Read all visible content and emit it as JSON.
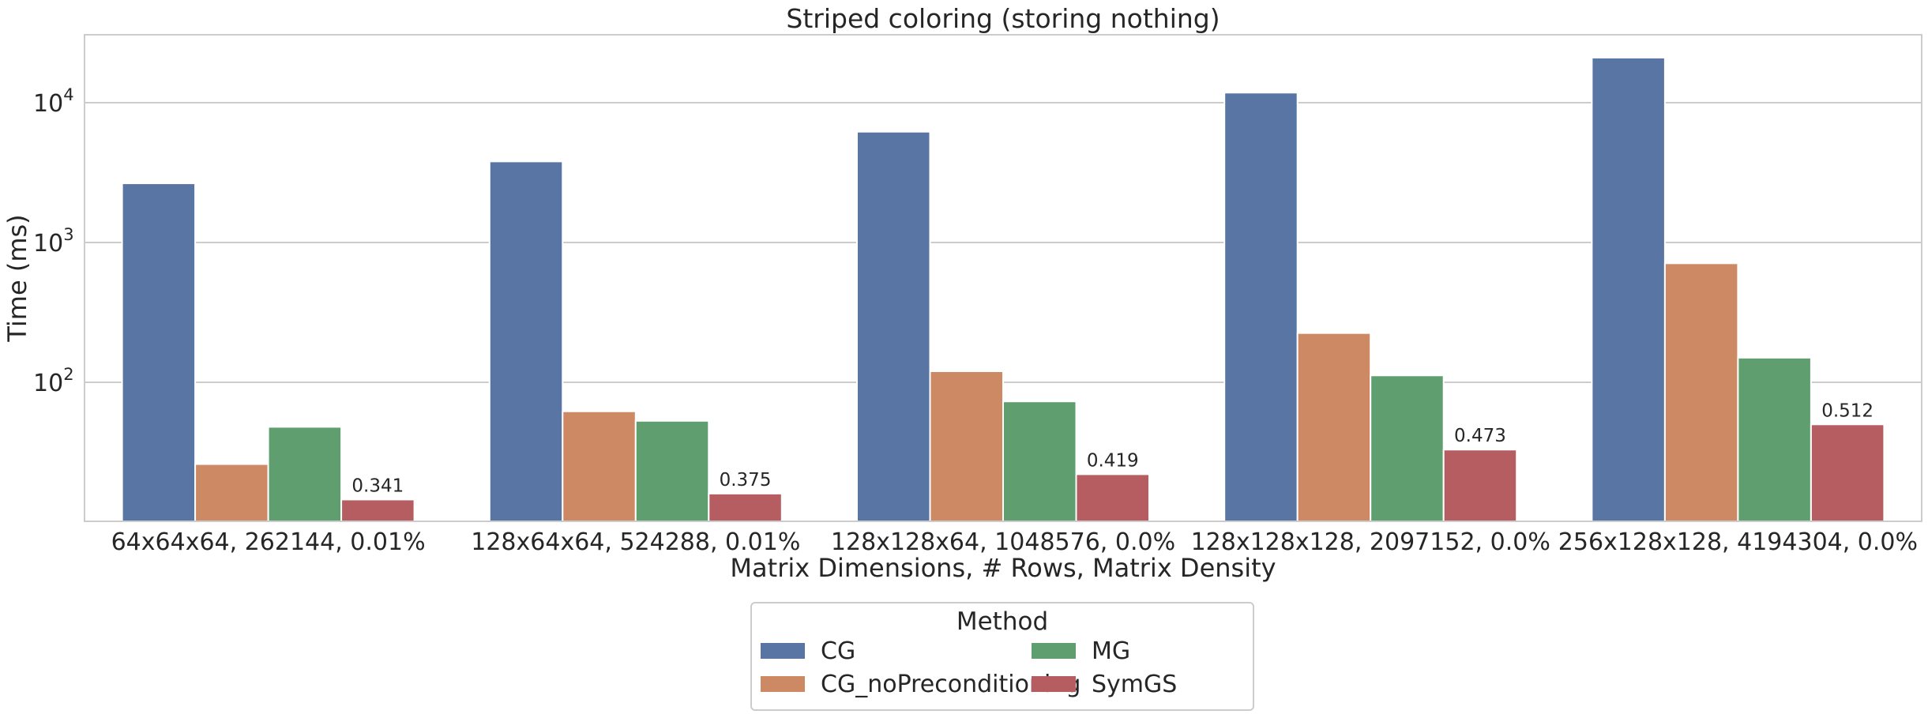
{
  "chart_data": {
    "type": "bar",
    "title": "Striped coloring (storing nothing)",
    "xlabel": "Matrix Dimensions, # Rows, Matrix Density",
    "ylabel": "Time (ms)",
    "yscale": "log",
    "ylim": [
      10,
      30000
    ],
    "yticks": [
      {
        "value": 100,
        "base": "10",
        "exp": "2"
      },
      {
        "value": 1000,
        "base": "10",
        "exp": "3"
      },
      {
        "value": 10000,
        "base": "10",
        "exp": "4"
      }
    ],
    "grid": "horizontal",
    "categories": [
      "64x64x64, 262144, 0.01%",
      "128x64x64, 524288, 0.01%",
      "128x128x64, 1048576, 0.0%",
      "128x128x128, 2097152, 0.0%",
      "256x128x128, 4194304, 0.0%"
    ],
    "series": [
      {
        "name": "CG",
        "color": "#5975a4",
        "values": [
          2650,
          3800,
          6200,
          11800,
          21000
        ]
      },
      {
        "name": "CG_noPreconditioning",
        "color": "#cc8963",
        "values": [
          26,
          62,
          120,
          225,
          710
        ]
      },
      {
        "name": "MG",
        "color": "#5f9e6e",
        "values": [
          48,
          53,
          73,
          112,
          150
        ]
      },
      {
        "name": "SymGS",
        "color": "#b55d60",
        "values": [
          14.5,
          16,
          22,
          33,
          50
        ],
        "bar_labels": [
          "0.341",
          "0.375",
          "0.419",
          "0.473",
          "0.512"
        ]
      }
    ],
    "legend": {
      "title": "Method",
      "placement": "bottom-center",
      "columns": 2,
      "entries": [
        "CG",
        "CG_noPreconditioning",
        "MG",
        "SymGS"
      ]
    }
  }
}
